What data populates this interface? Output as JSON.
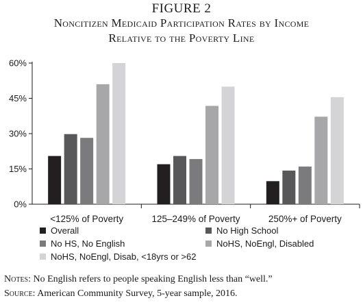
{
  "figure": {
    "title_line1": "FIGURE 2",
    "title_line2": "Noncitizen Medicaid Participation Rates by Income",
    "title_line3": "Relative to the Poverty Line"
  },
  "notes": {
    "notes_label": "Notes:",
    "notes_text": " No English refers to people speaking English less than “well.”",
    "source_label": "Source:",
    "source_text": " American Community Survey, 5-year sample, 2016."
  },
  "chart_data": {
    "type": "bar",
    "categories": [
      "<125% of Poverty",
      "125–249% of Poverty",
      "250%+ of Poverty"
    ],
    "series": [
      {
        "name": "Overall",
        "color": "#231f20",
        "values": [
          20.5,
          17,
          9.8
        ]
      },
      {
        "name": "No High School",
        "color": "#58585a",
        "values": [
          29.8,
          20.5,
          14.3
        ]
      },
      {
        "name": "No HS, No English",
        "color": "#7b7b7d",
        "values": [
          28.2,
          19.2,
          16
        ]
      },
      {
        "name": "NoHS, NoEngl, Disabled",
        "color": "#a7a7a9",
        "values": [
          51,
          41.8,
          37.2
        ]
      },
      {
        "name": "NoHS, NoEngl, Disab, <18yrs or >62",
        "color": "#d4d4d6",
        "values": [
          60,
          50,
          45.5
        ]
      }
    ],
    "yticks": [
      "0%",
      "15%",
      "30%",
      "45%",
      "60%"
    ],
    "ytick_values": [
      0,
      15,
      30,
      45,
      60
    ],
    "ylim": [
      0,
      60
    ],
    "grid": false,
    "legend": "bottom",
    "xlabel": "",
    "ylabel": ""
  }
}
